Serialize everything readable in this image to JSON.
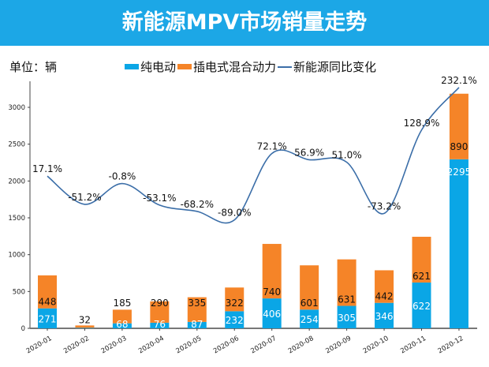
{
  "title": "新能源MPV市场销量走势",
  "unit_label": "单位：辆",
  "colors": {
    "title_bg": "#1ca7e6",
    "bev": "#0aa6e6",
    "phev": "#f58428",
    "line": "#3b6ea8"
  },
  "chart_data": {
    "type": "bar",
    "stacked": true,
    "title": "新能源MPV市场销量走势",
    "categories": [
      "2020-01",
      "2020-02",
      "2020-03",
      "2020-04",
      "2020-05",
      "2020-06",
      "2020-07",
      "2020-08",
      "2020-09",
      "2020-10",
      "2020-11",
      "2020-12"
    ],
    "series": [
      {
        "name": "纯电动",
        "type": "bar",
        "values": [
          271,
          7,
          68,
          76,
          87,
          232,
          406,
          254,
          305,
          346,
          622,
          2295
        ]
      },
      {
        "name": "插电式混合动力",
        "type": "bar",
        "values": [
          448,
          32,
          185,
          290,
          335,
          322,
          740,
          601,
          631,
          442,
          621,
          890
        ]
      },
      {
        "name": "新能源同比变化",
        "type": "line",
        "values": [
          17.1,
          -51.2,
          -0.8,
          -53.1,
          -68.2,
          -89.0,
          72.1,
          56.9,
          51.0,
          -73.2,
          128.9,
          232.1
        ],
        "labels": [
          "17.1%",
          "-51.2%",
          "-0.8%",
          "-53.1%",
          "-68.2%",
          "-89.0%",
          "72.1%",
          "56.9%",
          "51.0%",
          "-73.2%",
          "128.9%",
          "232.1%"
        ]
      }
    ],
    "hidden_label_indices": {
      "纯电动": [
        1
      ]
    },
    "yticks": [
      0,
      500,
      1000,
      1500,
      2000,
      2500,
      3000
    ],
    "ylim": [
      0,
      3300
    ],
    "grid": false,
    "legend": "top"
  }
}
